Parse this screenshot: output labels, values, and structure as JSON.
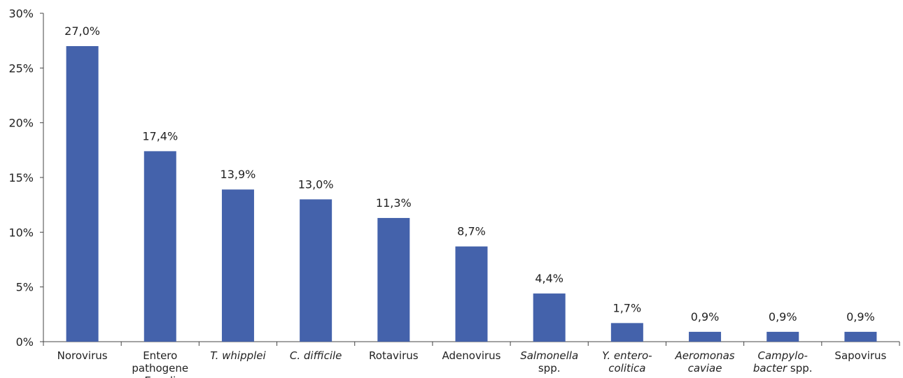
{
  "chart_data": {
    "type": "bar",
    "categories": [
      [
        "Norovirus"
      ],
      [
        "Entero",
        "pathogene",
        "E. coli"
      ],
      [
        "T. whipplei"
      ],
      [
        "C. difficile"
      ],
      [
        "Rotavirus"
      ],
      [
        "Adenovirus"
      ],
      [
        "Salmonella",
        "spp."
      ],
      [
        "Y. entero-",
        "colitica"
      ],
      [
        "Aeromonas",
        "caviae"
      ],
      [
        "Campylo-",
        "bacter spp."
      ],
      [
        "Sapovirus"
      ]
    ],
    "italic_categories": [
      false,
      false,
      true,
      true,
      false,
      false,
      [
        true,
        false
      ],
      true,
      true,
      [
        true,
        false
      ],
      false
    ],
    "values": [
      27.0,
      17.4,
      13.9,
      13.0,
      11.3,
      8.7,
      4.4,
      1.7,
      0.9,
      0.9,
      0.9
    ],
    "data_labels": [
      "27,0%",
      "17,4%",
      "13,9%",
      "13,0%",
      "11,3%",
      "8,7%",
      "4,4%",
      "1,7%",
      "0,9%",
      "0,9%",
      "0,9%"
    ],
    "ylim": [
      0,
      30
    ],
    "yticks": [
      0,
      5,
      10,
      15,
      20,
      25,
      30
    ],
    "ytick_labels": [
      "0%",
      "5%",
      "10%",
      "15%",
      "20%",
      "25%",
      "30%"
    ],
    "title": "",
    "xlabel": "",
    "ylabel": "",
    "grid": false,
    "bar_color": "#4462ab"
  }
}
